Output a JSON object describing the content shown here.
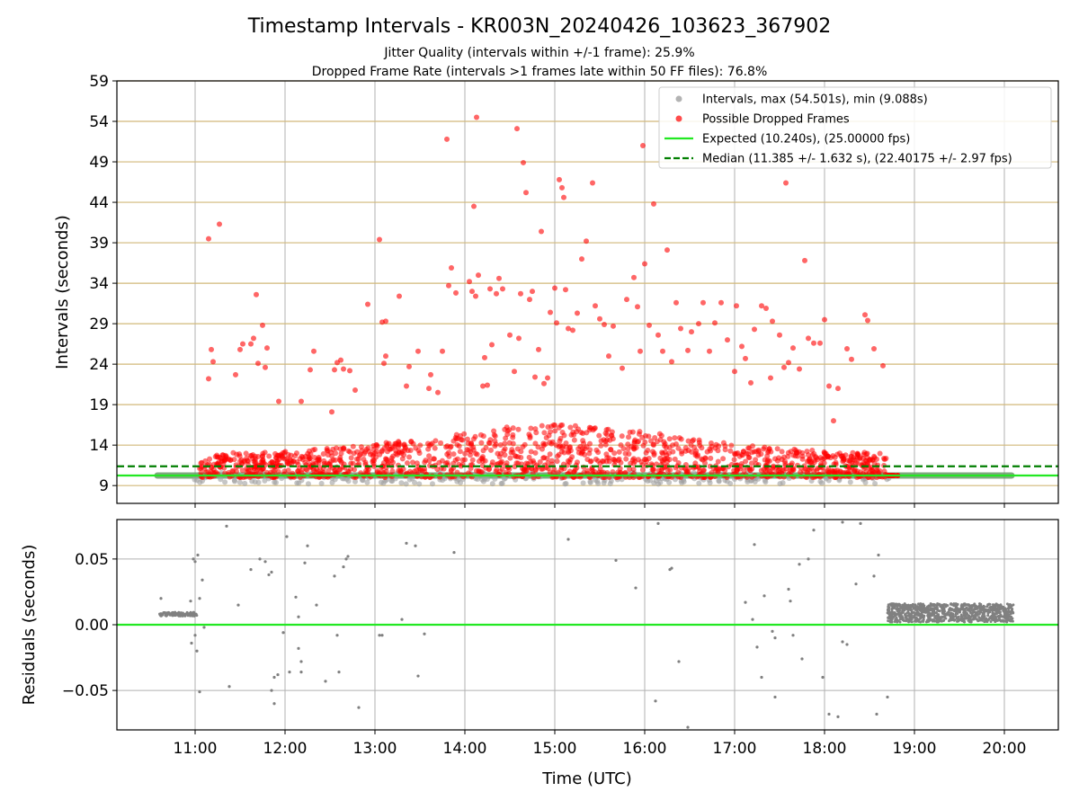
{
  "title": "Timestamp Intervals - KR003N_20240426_103623_367902",
  "subtitle_1": "Jitter Quality (intervals within +/-1 frame): 25.9%",
  "subtitle_2": "Dropped Frame Rate (intervals >1 frames late within 50 FF files): 76.8%",
  "colors": {
    "interval_points": "#a0a0a0",
    "dropped_points": "#ff0000",
    "expected_line": "#22e822",
    "median_line": "#007f00",
    "reference_grid": "#d2b87a",
    "residual_points": "#808080"
  },
  "chart_data": [
    {
      "type": "scatter",
      "panel": "top",
      "ylabel": "Intervals (seconds)",
      "ylim": [
        6.8,
        59
      ],
      "yticks": [
        9,
        14,
        19,
        24,
        29,
        34,
        39,
        44,
        49,
        54,
        59
      ],
      "xlim": [
        10.13,
        20.6
      ],
      "grid": true,
      "legend_placement": "top-right",
      "legend": [
        {
          "label": "Intervals, max (54.501s), min (9.088s)",
          "kind": "dot-gray"
        },
        {
          "label": "Possible Dropped Frames",
          "kind": "dot-red"
        },
        {
          "label": "Expected (10.240s), (25.00000 fps)",
          "kind": "line-solid"
        },
        {
          "label": "Median (11.385 +/- 1.632 s), (22.40175 +/- 2.97 fps)",
          "kind": "line-dashed"
        }
      ],
      "expected_y": 10.24,
      "median_y": 11.385,
      "normal_band": {
        "x": [
          10.58,
          20.08
        ],
        "y": 10.24
      },
      "dense_band": {
        "x": [
          11.05,
          18.7
        ],
        "y_range": [
          9.5,
          15.5
        ]
      },
      "series": [
        {
          "name": "Possible Dropped Frames",
          "points": [
            [
              11.15,
              39.5
            ],
            [
              11.27,
              41.3
            ],
            [
              11.15,
              22.2
            ],
            [
              11.18,
              25.8
            ],
            [
              11.2,
              24.3
            ],
            [
              11.45,
              22.7
            ],
            [
              11.5,
              25.8
            ],
            [
              11.53,
              26.5
            ],
            [
              11.62,
              26.5
            ],
            [
              11.65,
              27.2
            ],
            [
              11.68,
              32.6
            ],
            [
              11.7,
              24.1
            ],
            [
              11.75,
              28.8
            ],
            [
              11.78,
              23.6
            ],
            [
              11.8,
              26.0
            ],
            [
              11.93,
              19.4
            ],
            [
              12.18,
              19.4
            ],
            [
              12.28,
              23.3
            ],
            [
              12.32,
              25.6
            ],
            [
              12.52,
              18.1
            ],
            [
              12.55,
              23.3
            ],
            [
              12.58,
              24.2
            ],
            [
              12.62,
              24.5
            ],
            [
              12.65,
              23.4
            ],
            [
              12.72,
              23.2
            ],
            [
              12.78,
              20.8
            ],
            [
              12.92,
              31.4
            ],
            [
              13.05,
              39.4
            ],
            [
              13.08,
              29.2
            ],
            [
              13.12,
              29.3
            ],
            [
              13.1,
              24.1
            ],
            [
              13.12,
              25.0
            ],
            [
              13.27,
              32.4
            ],
            [
              13.35,
              21.3
            ],
            [
              13.38,
              23.7
            ],
            [
              13.48,
              25.6
            ],
            [
              13.6,
              21.0
            ],
            [
              13.62,
              22.7
            ],
            [
              13.7,
              20.5
            ],
            [
              13.75,
              25.6
            ],
            [
              13.8,
              51.8
            ],
            [
              13.82,
              33.7
            ],
            [
              13.85,
              35.9
            ],
            [
              13.9,
              32.8
            ],
            [
              14.05,
              34.2
            ],
            [
              14.08,
              33.0
            ],
            [
              14.1,
              43.5
            ],
            [
              14.12,
              32.4
            ],
            [
              14.13,
              54.5
            ],
            [
              14.15,
              35.0
            ],
            [
              14.2,
              21.3
            ],
            [
              14.25,
              21.4
            ],
            [
              14.22,
              24.8
            ],
            [
              14.28,
              33.3
            ],
            [
              14.3,
              26.4
            ],
            [
              14.35,
              32.7
            ],
            [
              14.38,
              34.6
            ],
            [
              14.42,
              33.3
            ],
            [
              14.5,
              27.6
            ],
            [
              14.55,
              23.1
            ],
            [
              14.58,
              53.1
            ],
            [
              14.6,
              27.2
            ],
            [
              14.62,
              32.7
            ],
            [
              14.65,
              48.9
            ],
            [
              14.68,
              45.2
            ],
            [
              14.72,
              32.0
            ],
            [
              14.75,
              33.0
            ],
            [
              14.78,
              22.4
            ],
            [
              14.82,
              25.8
            ],
            [
              14.85,
              40.4
            ],
            [
              14.88,
              21.6
            ],
            [
              14.92,
              22.3
            ],
            [
              14.95,
              30.4
            ],
            [
              15.0,
              33.4
            ],
            [
              15.02,
              29.1
            ],
            [
              15.05,
              46.8
            ],
            [
              15.08,
              45.8
            ],
            [
              15.1,
              44.6
            ],
            [
              15.12,
              33.2
            ],
            [
              15.15,
              28.4
            ],
            [
              15.2,
              28.2
            ],
            [
              15.25,
              30.3
            ],
            [
              15.3,
              37.0
            ],
            [
              15.35,
              39.2
            ],
            [
              15.42,
              46.4
            ],
            [
              15.45,
              31.2
            ],
            [
              15.5,
              29.6
            ],
            [
              15.55,
              28.9
            ],
            [
              15.6,
              25.0
            ],
            [
              15.65,
              28.7
            ],
            [
              15.75,
              23.5
            ],
            [
              15.8,
              32.0
            ],
            [
              15.88,
              34.7
            ],
            [
              15.92,
              31.1
            ],
            [
              15.95,
              25.6
            ],
            [
              15.98,
              51.0
            ],
            [
              16.0,
              36.4
            ],
            [
              16.05,
              28.8
            ],
            [
              16.1,
              43.8
            ],
            [
              16.15,
              27.6
            ],
            [
              16.2,
              25.6
            ],
            [
              16.25,
              38.1
            ],
            [
              16.3,
              24.3
            ],
            [
              16.35,
              31.6
            ],
            [
              16.4,
              28.4
            ],
            [
              16.48,
              25.7
            ],
            [
              16.52,
              28.0
            ],
            [
              16.6,
              29.0
            ],
            [
              16.65,
              31.6
            ],
            [
              16.72,
              25.6
            ],
            [
              16.78,
              29.1
            ],
            [
              16.85,
              31.6
            ],
            [
              16.92,
              27.0
            ],
            [
              17.0,
              23.1
            ],
            [
              17.02,
              31.2
            ],
            [
              17.08,
              26.2
            ],
            [
              17.12,
              24.7
            ],
            [
              17.18,
              21.7
            ],
            [
              17.22,
              28.3
            ],
            [
              17.3,
              31.2
            ],
            [
              17.35,
              30.9
            ],
            [
              17.4,
              22.3
            ],
            [
              17.42,
              29.3
            ],
            [
              17.5,
              27.6
            ],
            [
              17.55,
              23.6
            ],
            [
              17.57,
              46.4
            ],
            [
              17.6,
              24.2
            ],
            [
              17.65,
              26.0
            ],
            [
              17.72,
              23.4
            ],
            [
              17.78,
              36.8
            ],
            [
              17.82,
              27.2
            ],
            [
              17.88,
              26.6
            ],
            [
              17.95,
              26.6
            ],
            [
              18.0,
              29.5
            ],
            [
              18.05,
              21.3
            ],
            [
              18.1,
              17.0
            ],
            [
              18.15,
              21.0
            ],
            [
              18.25,
              25.9
            ],
            [
              18.3,
              24.6
            ],
            [
              18.45,
              30.1
            ],
            [
              18.48,
              29.4
            ],
            [
              18.55,
              25.9
            ],
            [
              18.65,
              23.8
            ]
          ]
        }
      ]
    },
    {
      "type": "scatter",
      "panel": "bottom",
      "xlabel": "Time (UTC)",
      "ylabel": "Residuals (seconds)",
      "ylim": [
        -0.08,
        0.08
      ],
      "yticks": [
        "0.05",
        "0.00",
        "−0.05"
      ],
      "ytick_values": [
        0.05,
        0.0,
        -0.05
      ],
      "xlim": [
        10.13,
        20.6
      ],
      "xticks": [
        "11:00",
        "12:00",
        "13:00",
        "14:00",
        "15:00",
        "16:00",
        "17:00",
        "18:00",
        "19:00",
        "20:00"
      ],
      "xtick_values": [
        11,
        12,
        13,
        14,
        15,
        16,
        17,
        18,
        19,
        20
      ],
      "grid": true,
      "zero_line_y": 0.0,
      "band_1": {
        "x": [
          10.6,
          11.02
        ],
        "y": 0.008
      },
      "band_2": {
        "x": [
          18.7,
          20.1
        ],
        "y_range": [
          0.002,
          0.016
        ]
      },
      "series": [
        {
          "name": "Residuals",
          "points": [
            [
              10.62,
              0.02
            ],
            [
              10.98,
              0.05
            ],
            [
              11.0,
              0.048
            ],
            [
              11.03,
              0.053
            ],
            [
              10.95,
              0.018
            ],
            [
              11.05,
              0.02
            ],
            [
              11.08,
              0.034
            ],
            [
              10.96,
              -0.014
            ],
            [
              11.0,
              -0.008
            ],
            [
              11.02,
              -0.02
            ],
            [
              11.05,
              -0.051
            ],
            [
              11.1,
              -0.002
            ],
            [
              11.35,
              0.075
            ],
            [
              11.38,
              -0.047
            ],
            [
              11.48,
              0.015
            ],
            [
              11.62,
              0.042
            ],
            [
              11.72,
              0.05
            ],
            [
              11.78,
              0.048
            ],
            [
              11.82,
              0.038
            ],
            [
              11.85,
              0.04
            ],
            [
              11.85,
              -0.05
            ],
            [
              11.88,
              -0.04
            ],
            [
              11.88,
              -0.06
            ],
            [
              11.92,
              -0.038
            ],
            [
              11.98,
              -0.006
            ],
            [
              12.02,
              0.067
            ],
            [
              12.05,
              -0.036
            ],
            [
              12.12,
              0.021
            ],
            [
              12.15,
              0.006
            ],
            [
              12.15,
              -0.018
            ],
            [
              12.18,
              -0.036
            ],
            [
              12.18,
              -0.028
            ],
            [
              12.22,
              0.047
            ],
            [
              12.25,
              0.06
            ],
            [
              12.35,
              0.015
            ],
            [
              12.45,
              -0.043
            ],
            [
              12.55,
              0.037
            ],
            [
              12.58,
              -0.008
            ],
            [
              12.6,
              -0.036
            ],
            [
              12.65,
              0.044
            ],
            [
              12.68,
              0.05
            ],
            [
              12.7,
              0.052
            ],
            [
              12.82,
              -0.063
            ],
            [
              13.05,
              -0.008
            ],
            [
              13.08,
              -0.008
            ],
            [
              13.3,
              0.004
            ],
            [
              13.35,
              0.062
            ],
            [
              13.45,
              0.06
            ],
            [
              13.48,
              -0.039
            ],
            [
              13.55,
              -0.007
            ],
            [
              13.88,
              0.055
            ],
            [
              15.15,
              0.065
            ],
            [
              15.68,
              0.049
            ],
            [
              15.9,
              0.028
            ],
            [
              16.15,
              0.077
            ],
            [
              16.12,
              -0.058
            ],
            [
              16.28,
              0.042
            ],
            [
              16.3,
              0.043
            ],
            [
              16.38,
              -0.028
            ],
            [
              16.48,
              -0.078
            ],
            [
              17.12,
              0.017
            ],
            [
              17.2,
              0.004
            ],
            [
              17.22,
              0.061
            ],
            [
              17.25,
              -0.017
            ],
            [
              17.3,
              -0.04
            ],
            [
              17.33,
              0.022
            ],
            [
              17.42,
              -0.005
            ],
            [
              17.45,
              -0.055
            ],
            [
              17.45,
              -0.01
            ],
            [
              17.6,
              0.027
            ],
            [
              17.62,
              0.018
            ],
            [
              17.65,
              -0.008
            ],
            [
              17.72,
              0.046
            ],
            [
              17.75,
              -0.026
            ],
            [
              17.82,
              0.05
            ],
            [
              17.88,
              0.072
            ],
            [
              17.98,
              -0.04
            ],
            [
              18.05,
              -0.068
            ],
            [
              18.15,
              -0.07
            ],
            [
              18.2,
              0.078
            ],
            [
              18.2,
              -0.013
            ],
            [
              18.25,
              -0.015
            ],
            [
              18.35,
              0.031
            ],
            [
              18.4,
              0.077
            ],
            [
              18.55,
              0.037
            ],
            [
              18.6,
              0.053
            ],
            [
              18.58,
              -0.068
            ],
            [
              18.7,
              -0.055
            ]
          ]
        }
      ]
    }
  ]
}
